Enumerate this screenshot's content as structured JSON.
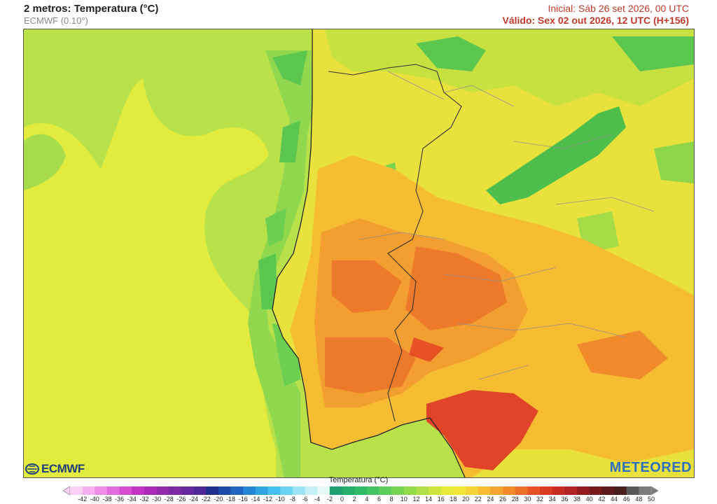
{
  "header": {
    "title": "2 metros: Temperatura (°C)",
    "model": "ECMWF (0.10°)",
    "initial": "Inicial: Sáb 26 set 2026, 00 UTC",
    "valid": "Válido: Sex 02 out 2026, 12 UTC (H+156)"
  },
  "logos": {
    "left": "ECMWF",
    "right": "METEORED"
  },
  "legend": {
    "title": "Temperatura (°C)",
    "values": [
      -42,
      -40,
      -38,
      -36,
      -34,
      -32,
      -30,
      -28,
      -26,
      -24,
      -22,
      -20,
      -18,
      -16,
      -14,
      -12,
      -10,
      -8,
      -6,
      -4,
      -2,
      0,
      2,
      4,
      6,
      8,
      10,
      12,
      14,
      16,
      18,
      20,
      22,
      24,
      26,
      28,
      30,
      32,
      34,
      36,
      38,
      40,
      42,
      44,
      46,
      48,
      50
    ],
    "colors": [
      "#fbd1f6",
      "#f7b0ef",
      "#ef8ce6",
      "#e26bdd",
      "#d64dd2",
      "#c234c4",
      "#a92aba",
      "#922aae",
      "#7b2aa4",
      "#66289e",
      "#4f2796",
      "#1f2f8f",
      "#1c4aa7",
      "#1f66c1",
      "#2586d6",
      "#2fa4e3",
      "#45bfee",
      "#6cd3f3",
      "#9be3f5",
      "#c6f0f7",
      "#e6faf7",
      "#1d9f6e",
      "#25ad6a",
      "#30b966",
      "#43c463",
      "#5ccd5b",
      "#75d553",
      "#93db4b",
      "#b0e045",
      "#cde53e",
      "#e7ea3a",
      "#f3e63a",
      "#f6d336",
      "#f7bc33",
      "#f6a430",
      "#f38a2c",
      "#ee6f28",
      "#e65224",
      "#d93a22",
      "#c72b22",
      "#b02322",
      "#941c1f",
      "#761a1c",
      "#5c1a1a",
      "#4a1d1d",
      "#595959",
      "#7a7a7a"
    ]
  }
}
